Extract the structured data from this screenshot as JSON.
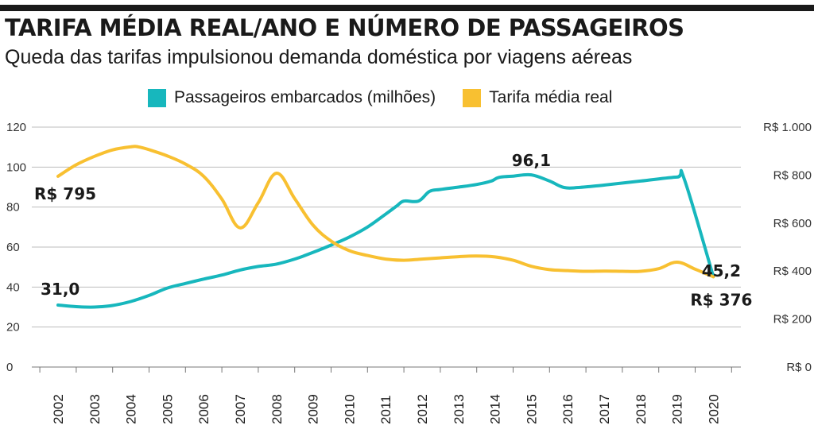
{
  "header": {
    "title": "TARIFA MÉDIA REAL/ANO E NÚMERO DE PASSAGEIROS",
    "subtitle": "Queda das tarifas impulsionou demanda doméstica por viagens aéreas"
  },
  "legend": [
    {
      "label": "Passageiros embarcados (milhões)",
      "color": "#17b7bd"
    },
    {
      "label": "Tarifa média real",
      "color": "#f8c031"
    }
  ],
  "chart_data": {
    "type": "line",
    "title": "TARIFA MÉDIA REAL/ANO E NÚMERO DE PASSAGEIROS",
    "subtitle": "Queda das tarifas impulsionou demanda doméstica por viagens aéreas",
    "grid": true,
    "legend_position": "top",
    "categories": [
      "2002",
      "2003",
      "2004",
      "2005",
      "2006",
      "2007",
      "2008",
      "2009",
      "2010",
      "2011",
      "2012",
      "2013",
      "2014",
      "2015",
      "2016",
      "2017",
      "2018",
      "2019",
      "2020"
    ],
    "y_left": {
      "ticks": [
        0,
        20,
        40,
        60,
        80,
        100,
        120
      ],
      "tick_labels": [
        "0",
        "20",
        "40",
        "60",
        "80",
        "100",
        "120"
      ],
      "ylim": [
        0,
        120
      ]
    },
    "y_right": {
      "ticks": [
        0,
        200,
        400,
        600,
        800,
        1000
      ],
      "tick_labels": [
        "R$ 0",
        "R$ 200",
        "R$ 400",
        "R$ 600",
        "R$ 800",
        "R$ 1.000"
      ],
      "ylim": [
        0,
        1000
      ]
    },
    "series": [
      {
        "name": "Passageiros embarcados (milhões)",
        "axis": "left",
        "color": "#17b7bd",
        "points": [
          [
            2002.0,
            31.0
          ],
          [
            2002.5,
            30.2
          ],
          [
            2003.0,
            30.0
          ],
          [
            2003.5,
            30.8
          ],
          [
            2004.0,
            32.8
          ],
          [
            2004.5,
            35.8
          ],
          [
            2005.0,
            39.5
          ],
          [
            2005.5,
            41.8
          ],
          [
            2006.0,
            44.0
          ],
          [
            2006.5,
            46.0
          ],
          [
            2007.0,
            48.5
          ],
          [
            2007.5,
            50.3
          ],
          [
            2008.0,
            51.5
          ],
          [
            2008.5,
            54.0
          ],
          [
            2009.0,
            57.3
          ],
          [
            2009.5,
            61.0
          ],
          [
            2010.0,
            65.0
          ],
          [
            2010.5,
            70.0
          ],
          [
            2011.0,
            76.5
          ],
          [
            2011.3,
            80.5
          ],
          [
            2011.5,
            83.0
          ],
          [
            2011.9,
            83.0
          ],
          [
            2012.2,
            87.8
          ],
          [
            2012.5,
            88.8
          ],
          [
            2013.0,
            90.0
          ],
          [
            2013.5,
            91.3
          ],
          [
            2013.9,
            93.0
          ],
          [
            2014.1,
            94.8
          ],
          [
            2014.5,
            95.5
          ],
          [
            2015.0,
            96.1
          ],
          [
            2015.5,
            93.0
          ],
          [
            2015.9,
            89.8
          ],
          [
            2016.3,
            89.8
          ],
          [
            2017.0,
            91.0
          ],
          [
            2018.0,
            93.0
          ],
          [
            2019.0,
            95.0
          ],
          [
            2019.2,
            94.0
          ],
          [
            2020.0,
            45.2
          ]
        ]
      },
      {
        "name": "Tarifa média real",
        "axis": "right",
        "color": "#f8c031",
        "points": [
          [
            2002.0,
            795
          ],
          [
            2002.5,
            843
          ],
          [
            2003.0,
            878
          ],
          [
            2003.5,
            905
          ],
          [
            2004.0,
            918
          ],
          [
            2004.2,
            918
          ],
          [
            2004.5,
            906
          ],
          [
            2005.0,
            880
          ],
          [
            2005.5,
            846
          ],
          [
            2006.0,
            795
          ],
          [
            2006.5,
            700
          ],
          [
            2007.0,
            580
          ],
          [
            2007.5,
            685
          ],
          [
            2008.0,
            808
          ],
          [
            2008.5,
            702
          ],
          [
            2009.0,
            592
          ],
          [
            2009.5,
            525
          ],
          [
            2010.0,
            485
          ],
          [
            2010.5,
            465
          ],
          [
            2011.0,
            450
          ],
          [
            2011.5,
            445
          ],
          [
            2012.0,
            450
          ],
          [
            2012.5,
            455
          ],
          [
            2013.0,
            460
          ],
          [
            2013.5,
            463
          ],
          [
            2014.0,
            459
          ],
          [
            2014.5,
            445
          ],
          [
            2015.0,
            420
          ],
          [
            2015.5,
            406
          ],
          [
            2016.0,
            402
          ],
          [
            2016.5,
            399
          ],
          [
            2017.0,
            400
          ],
          [
            2017.5,
            399
          ],
          [
            2018.0,
            399
          ],
          [
            2018.5,
            410
          ],
          [
            2019.0,
            437
          ],
          [
            2019.5,
            408
          ],
          [
            2020.0,
            376
          ]
        ]
      }
    ],
    "annotations": [
      {
        "text": "31,0",
        "series": "Passageiros embarcados (milhões)",
        "x": 2002,
        "y": 31.0
      },
      {
        "text": "96,1",
        "series": "Passageiros embarcados (milhões)",
        "x": 2015,
        "y": 96.1
      },
      {
        "text": "45,2",
        "series": "Passageiros embarcados (milhões)",
        "x": 2020,
        "y": 45.2
      },
      {
        "text": "R$ 795",
        "series": "Tarifa média real",
        "x": 2002,
        "y": 795
      },
      {
        "text": "R$ 376",
        "series": "Tarifa média real",
        "x": 2020,
        "y": 376
      }
    ]
  }
}
